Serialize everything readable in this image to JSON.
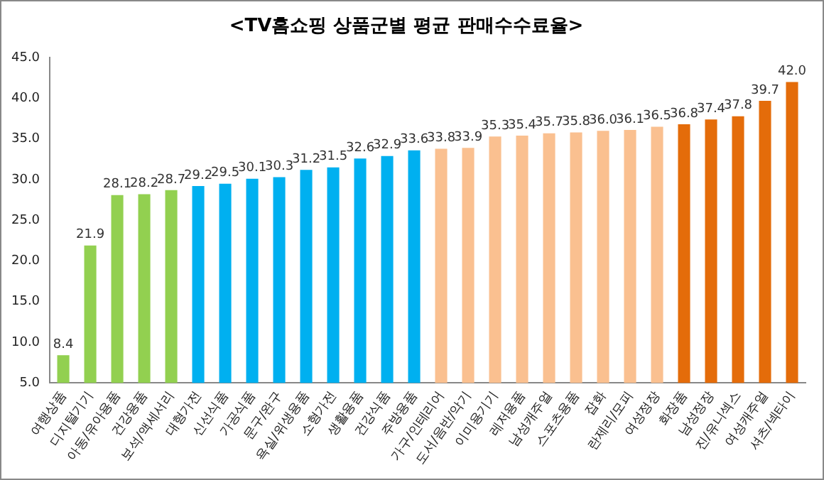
{
  "chart_data": {
    "type": "bar",
    "title": "<TV홈쇼핑 상품군별 평균 판매수수료율>",
    "categories": [
      "여행상품",
      "디지털기기",
      "아동/유아용품",
      "건강용품",
      "보석/액세서리",
      "대형가전",
      "신선식품",
      "가공식품",
      "문구/완구",
      "욕실/위생용품",
      "소형가전",
      "생활용품",
      "건강식품",
      "주방용품",
      "가구/인테리어",
      "도서/음반/악기",
      "이미용기기",
      "레저용품",
      "남성캐주얼",
      "스포츠용품",
      "잡화",
      "란제리/모피",
      "여성정장",
      "화장품",
      "남성정장",
      "진/유니섹스",
      "여성캐주얼",
      "셔츠/넥타이"
    ],
    "values": [
      8.4,
      21.9,
      28.1,
      28.2,
      28.7,
      29.2,
      29.5,
      30.1,
      30.3,
      31.2,
      31.5,
      32.6,
      32.9,
      33.6,
      33.8,
      33.9,
      35.3,
      35.4,
      35.7,
      35.8,
      36.0,
      36.1,
      36.5,
      36.8,
      37.4,
      37.8,
      39.7,
      42.0
    ],
    "value_labels": [
      "8.4",
      "21.9",
      "28.1",
      "28.2",
      "28.7",
      "29.2",
      "29.5",
      "30.1",
      "30.3",
      "31.2",
      "31.5",
      "32.6",
      "32.9",
      "33.6",
      "33.8",
      "33.9",
      "35.3",
      "35.4",
      "35.7",
      "35.8",
      "36.0",
      "36.1",
      "36.5",
      "36.8",
      "37.4",
      "37.8",
      "39.7",
      "42.0"
    ],
    "colors": [
      "#92d050",
      "#92d050",
      "#92d050",
      "#92d050",
      "#92d050",
      "#00b0f0",
      "#00b0f0",
      "#00b0f0",
      "#00b0f0",
      "#00b0f0",
      "#00b0f0",
      "#00b0f0",
      "#00b0f0",
      "#00b0f0",
      "#fac090",
      "#fac090",
      "#fac090",
      "#fac090",
      "#fac090",
      "#fac090",
      "#fac090",
      "#fac090",
      "#fac090",
      "#e46c0a",
      "#e46c0a",
      "#e46c0a",
      "#e46c0a",
      "#e46c0a"
    ],
    "ylim": [
      5,
      45
    ],
    "yticks": [
      {
        "value": 5,
        "label": "5.0"
      },
      {
        "value": 10,
        "label": "10.0"
      },
      {
        "value": 15,
        "label": "15.0"
      },
      {
        "value": 20,
        "label": "20.0"
      },
      {
        "value": 25,
        "label": "25.0"
      },
      {
        "value": 30,
        "label": "30.0"
      },
      {
        "value": 35,
        "label": "35.0"
      },
      {
        "value": 40,
        "label": "40.0"
      },
      {
        "value": 45,
        "label": "45.0"
      }
    ],
    "grid": false,
    "legend": false
  }
}
